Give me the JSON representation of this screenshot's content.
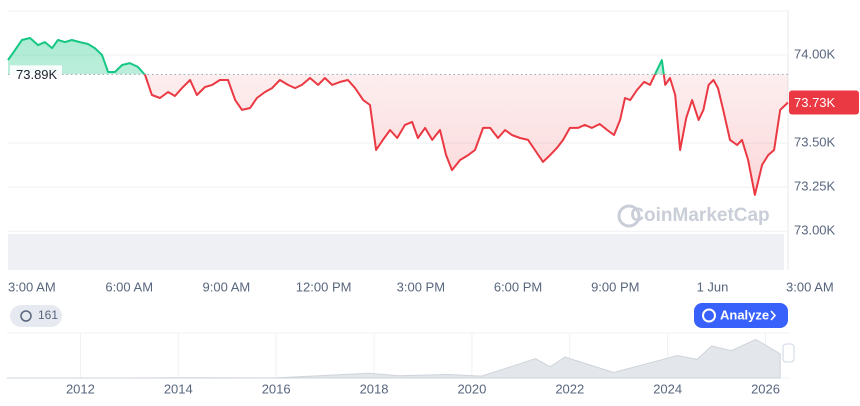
{
  "chart_data": {
    "type": "line",
    "watermark": "CoinMarketCap",
    "x": [
      2.26,
      2.48,
      2.69,
      2.94,
      3.19,
      3.4,
      3.62,
      3.8,
      4.02,
      4.23,
      4.48,
      4.73,
      4.94,
      5.16,
      5.35,
      5.56,
      5.78,
      6.02,
      6.27,
      6.49,
      6.7,
      6.95,
      7.2,
      7.41,
      7.63,
      7.88,
      8.09,
      8.34,
      8.56,
      8.8,
      9.05,
      9.27,
      9.48,
      9.73,
      9.94,
      10.19,
      10.41,
      10.65,
      10.9,
      11.12,
      11.33,
      11.58,
      11.83,
      12.04,
      12.26,
      12.51,
      12.75,
      12.97,
      13.22,
      13.43,
      13.62,
      13.83,
      14.05,
      14.27,
      14.51,
      14.73,
      14.91,
      15.13,
      15.35,
      15.59,
      15.78,
      15.96,
      16.21,
      16.46,
      16.67,
      16.92,
      17.14,
      17.38,
      17.6,
      17.81,
      18.06,
      18.31,
      18.52,
      18.77,
      18.99,
      19.2,
      19.39,
      19.6,
      19.85,
      20.06,
      20.28,
      20.52,
      20.75,
      20.96,
      21.15,
      21.3,
      21.46,
      21.67,
      21.89,
      22.07,
      22.29,
      22.44,
      22.54,
      22.69,
      22.85,
      23.0,
      23.19,
      23.37,
      23.57,
      23.72,
      23.88,
      24.03,
      24.17,
      24.33,
      24.54,
      24.76,
      24.91,
      25.1,
      25.31,
      25.53,
      25.72,
      25.9,
      26.09,
      26.33
    ],
    "series": [
      {
        "values": [
          73971,
          74028,
          74085,
          74096,
          74056,
          74073,
          74039,
          74085,
          74073,
          74085,
          74073,
          74062,
          74039,
          74000,
          73903,
          73903,
          73943,
          73954,
          73932,
          73886,
          73773,
          73756,
          73790,
          73767,
          73812,
          73858,
          73773,
          73818,
          73830,
          73858,
          73858,
          73744,
          73688,
          73699,
          73756,
          73790,
          73812,
          73858,
          73830,
          73812,
          73830,
          73869,
          73830,
          73869,
          73830,
          73847,
          73858,
          73812,
          73744,
          73716,
          73461,
          73518,
          73574,
          73529,
          73603,
          73620,
          73529,
          73586,
          73518,
          73574,
          73432,
          73347,
          73404,
          73432,
          73461,
          73586,
          73586,
          73529,
          73574,
          73546,
          73529,
          73518,
          73461,
          73393,
          73432,
          73472,
          73518,
          73586,
          73586,
          73603,
          73586,
          73608,
          73574,
          73546,
          73631,
          73756,
          73744,
          73801,
          73847,
          73830,
          73915,
          73971,
          73830,
          73869,
          73773,
          73461,
          73642,
          73744,
          73631,
          73688,
          73830,
          73858,
          73812,
          73688,
          73518,
          73489,
          73518,
          73404,
          73206,
          73376,
          73432,
          73461,
          73688,
          73730
        ],
        "color_up": "#16c784",
        "color_down": "#ea3943"
      }
    ],
    "baseline": {
      "value": 73890,
      "label": "73.89K"
    },
    "current": {
      "value": 73730,
      "label": "73.73K"
    },
    "xlim": [
      2.26,
      26.33
    ],
    "xticks": [
      {
        "value": 3,
        "label": "3:00 AM"
      },
      {
        "value": 6,
        "label": "6:00 AM"
      },
      {
        "value": 9,
        "label": "9:00 AM"
      },
      {
        "value": 12,
        "label": "12:00 PM"
      },
      {
        "value": 15,
        "label": "3:00 PM"
      },
      {
        "value": 18,
        "label": "6:00 PM"
      },
      {
        "value": 21,
        "label": "9:00 PM"
      },
      {
        "value": 24,
        "label": "1 Jun"
      },
      {
        "value": 27,
        "label": "3:00 AM"
      }
    ],
    "ylim": [
      72780,
      74255
    ],
    "yticks": [
      {
        "value": 74000,
        "label": "74.00K"
      },
      {
        "value": 73500,
        "label": "73.50K"
      },
      {
        "value": 73250,
        "label": "73.25K"
      },
      {
        "value": 73000,
        "label": "73.00K"
      }
    ],
    "grid": true,
    "history_badge": "161",
    "analyze_button": "Analyze",
    "overview": {
      "x": [
        2010.5,
        2013,
        2014,
        2016,
        2017.9,
        2018.5,
        2019.5,
        2020.2,
        2021.3,
        2021.6,
        2021.9,
        2022.9,
        2024.2,
        2024.6,
        2024.9,
        2025.3,
        2025.8,
        2026.3
      ],
      "values": [
        0,
        100,
        800,
        400,
        15000,
        7000,
        11000,
        6000,
        60000,
        35000,
        65000,
        17000,
        70000,
        58000,
        100000,
        85000,
        120000,
        75000
      ],
      "xlim": [
        2010.5,
        2026.5
      ],
      "ylim": [
        0,
        140000
      ],
      "xticks": [
        2012,
        2014,
        2016,
        2018,
        2020,
        2022,
        2024,
        2026
      ]
    }
  }
}
